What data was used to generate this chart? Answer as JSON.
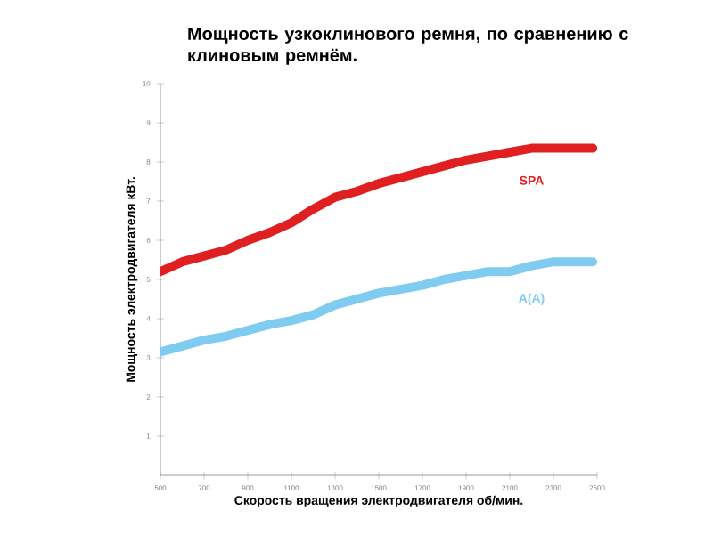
{
  "chart_data": {
    "type": "line",
    "title": "Мощность узкоклинового ремня, по сравнению с клиновым ремнём.",
    "xlabel": "Скорость вращения электродвигателя об/мин.",
    "ylabel": "Мощность электродвигателя кВт.",
    "x": [
      500,
      600,
      700,
      800,
      900,
      1000,
      1100,
      1200,
      1300,
      1400,
      1500,
      1600,
      1700,
      1800,
      1900,
      2000,
      2100,
      2200,
      2300,
      2400,
      2480
    ],
    "series": [
      {
        "name": "SPA",
        "color": "#e02020",
        "values": [
          5.2,
          5.45,
          5.6,
          5.75,
          6.0,
          6.2,
          6.45,
          6.8,
          7.1,
          7.25,
          7.45,
          7.6,
          7.75,
          7.9,
          8.05,
          8.15,
          8.25,
          8.35,
          8.35,
          8.35,
          8.35
        ]
      },
      {
        "name": "A(A)",
        "color": "#80ccf0",
        "values": [
          3.15,
          3.3,
          3.45,
          3.55,
          3.7,
          3.85,
          3.95,
          4.1,
          4.35,
          4.5,
          4.65,
          4.75,
          4.85,
          5.0,
          5.1,
          5.2,
          5.2,
          5.35,
          5.45,
          5.45,
          5.45
        ]
      }
    ],
    "xlim": [
      500,
      2500
    ],
    "ylim": [
      0,
      10
    ],
    "xticks": [
      500,
      700,
      900,
      1100,
      1300,
      1500,
      1700,
      1900,
      2100,
      2300,
      2500
    ],
    "yticks": [
      1,
      2,
      3,
      4,
      5,
      6,
      7,
      8,
      9,
      10
    ],
    "grid": false,
    "legend": false,
    "marker": "none",
    "line_style": "solid"
  }
}
